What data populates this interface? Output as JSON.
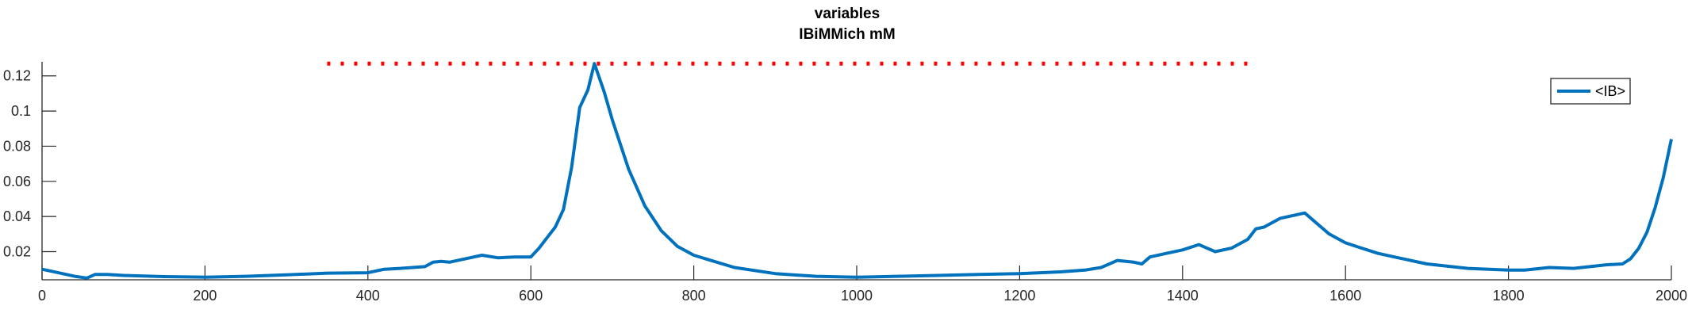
{
  "chart_data": {
    "type": "line",
    "title": "variables",
    "subtitle": "IBiMMich mM",
    "xlabel": "",
    "ylabel": "",
    "xlim": [
      0,
      2000
    ],
    "ylim": [
      0.004,
      0.128
    ],
    "x_ticks": [
      0,
      200,
      400,
      600,
      800,
      1000,
      1200,
      1400,
      1600,
      1800,
      2000
    ],
    "x_tick_labels": [
      "0",
      "200",
      "400",
      "600",
      "800",
      "1000",
      "1200",
      "1400",
      "1600",
      "1800",
      "2000"
    ],
    "y_ticks": [
      0.02,
      0.04,
      0.06,
      0.08,
      0.1,
      0.12
    ],
    "y_tick_labels": [
      "0.02",
      "0.04",
      "0.06",
      "0.08",
      "0.1",
      "0.12"
    ],
    "grid": false,
    "legend_position": "top-right",
    "series": [
      {
        "name": "<IB>",
        "color": "#0072BD",
        "x": [
          0,
          20,
          40,
          55,
          65,
          80,
          100,
          150,
          200,
          250,
          300,
          350,
          400,
          420,
          440,
          470,
          480,
          490,
          500,
          520,
          540,
          560,
          580,
          600,
          610,
          620,
          630,
          640,
          650,
          660,
          670,
          678,
          690,
          700,
          720,
          740,
          760,
          780,
          800,
          850,
          900,
          950,
          1000,
          1050,
          1100,
          1150,
          1200,
          1250,
          1280,
          1300,
          1320,
          1340,
          1350,
          1360,
          1380,
          1400,
          1420,
          1440,
          1460,
          1480,
          1490,
          1500,
          1520,
          1540,
          1550,
          1560,
          1580,
          1600,
          1620,
          1640,
          1660,
          1700,
          1750,
          1800,
          1820,
          1850,
          1880,
          1900,
          1920,
          1940,
          1950,
          1960,
          1970,
          1980,
          1990,
          2000
        ],
        "y": [
          0.01,
          0.008,
          0.006,
          0.005,
          0.007,
          0.007,
          0.0065,
          0.0058,
          0.0055,
          0.006,
          0.0068,
          0.0078,
          0.008,
          0.01,
          0.0105,
          0.0115,
          0.014,
          0.0145,
          0.014,
          0.016,
          0.018,
          0.0165,
          0.017,
          0.017,
          0.022,
          0.028,
          0.034,
          0.044,
          0.068,
          0.102,
          0.112,
          0.127,
          0.111,
          0.095,
          0.067,
          0.046,
          0.032,
          0.023,
          0.018,
          0.011,
          0.0075,
          0.006,
          0.0055,
          0.006,
          0.0065,
          0.007,
          0.0075,
          0.0085,
          0.0095,
          0.011,
          0.015,
          0.014,
          0.013,
          0.017,
          0.019,
          0.021,
          0.024,
          0.02,
          0.022,
          0.027,
          0.033,
          0.034,
          0.039,
          0.041,
          0.042,
          0.038,
          0.03,
          0.025,
          0.022,
          0.019,
          0.017,
          0.013,
          0.0105,
          0.0095,
          0.0095,
          0.011,
          0.0105,
          0.0115,
          0.0125,
          0.013,
          0.016,
          0.022,
          0.031,
          0.045,
          0.062,
          0.084
        ]
      }
    ],
    "annotations": [
      {
        "type": "dotted-line",
        "color": "#FF0000",
        "y": 0.127,
        "x_start": 350,
        "x_end": 1480
      }
    ]
  }
}
